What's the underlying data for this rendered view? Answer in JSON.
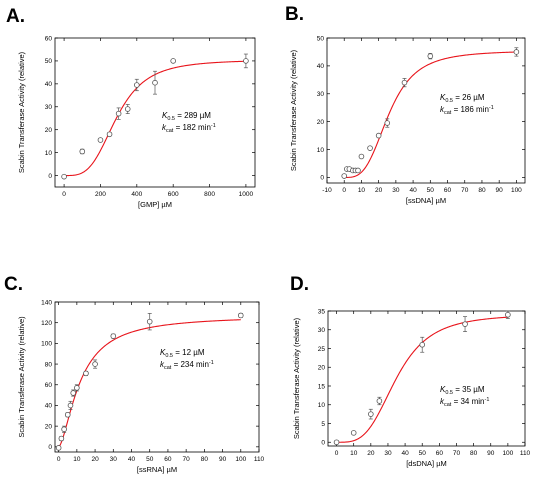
{
  "colors": {
    "fit": "#e8141b",
    "marker": "#555555",
    "axis": "#000000"
  },
  "chart_data": [
    {
      "type": "scatter",
      "panel": "A.",
      "xlabel": "[GMP] µM",
      "ylabel": "Scabin Transferase Activity (relative)",
      "xlim": [
        -50,
        1050
      ],
      "ylim": [
        -5,
        60
      ],
      "xticks": [
        0,
        200,
        400,
        600,
        800,
        1000
      ],
      "yticks": [
        0,
        10,
        20,
        30,
        40,
        50,
        60
      ],
      "points": [
        {
          "x": 0,
          "y": -0.5,
          "err": 0.5
        },
        {
          "x": 100,
          "y": 10.5,
          "err": 1
        },
        {
          "x": 200,
          "y": 15.5,
          "err": 0.7
        },
        {
          "x": 250,
          "y": 18,
          "err": 0.7
        },
        {
          "x": 300,
          "y": 27,
          "err": 2.5
        },
        {
          "x": 350,
          "y": 29,
          "err": 2
        },
        {
          "x": 400,
          "y": 39.5,
          "err": 2.5
        },
        {
          "x": 500,
          "y": 40.5,
          "err": 5
        },
        {
          "x": 600,
          "y": 50,
          "err": 0.7
        },
        {
          "x": 1000,
          "y": 50,
          "err": 3
        }
      ],
      "fit": {
        "vmax": 50.5,
        "k": 289,
        "n": 3.5
      },
      "annotation": {
        "k_label": "K",
        "k_sub": "0.5",
        "k_value": " = 289 µM",
        "kcat_label": "k",
        "kcat_sub": "cat",
        "kcat_value": " = 182 min",
        "kcat_sup": "-1"
      }
    },
    {
      "type": "scatter",
      "panel": "B.",
      "xlabel": "[ssDNA] µM",
      "ylabel": "Scabin Transferase Activity (relative)",
      "xlim": [
        -10,
        105
      ],
      "ylim": [
        -2,
        50
      ],
      "xticks": [
        -10,
        0,
        10,
        20,
        30,
        40,
        50,
        60,
        70,
        80,
        90,
        100
      ],
      "yticks": [
        0,
        10,
        20,
        30,
        40,
        50
      ],
      "points": [
        {
          "x": 0,
          "y": 0.5,
          "err": 0.5
        },
        {
          "x": 1.5,
          "y": 3,
          "err": 0.5
        },
        {
          "x": 3,
          "y": 3,
          "err": 0.5
        },
        {
          "x": 5,
          "y": 2.5,
          "err": 0.5
        },
        {
          "x": 6.5,
          "y": 2.5,
          "err": 0.5
        },
        {
          "x": 8,
          "y": 2.5,
          "err": 0.5
        },
        {
          "x": 10,
          "y": 7.5,
          "err": 0.5
        },
        {
          "x": 15,
          "y": 10.5,
          "err": 0.5
        },
        {
          "x": 20,
          "y": 15,
          "err": 0.5
        },
        {
          "x": 25,
          "y": 19.5,
          "err": 1.5
        },
        {
          "x": 35,
          "y": 34,
          "err": 1.5
        },
        {
          "x": 50,
          "y": 43.5,
          "err": 1
        },
        {
          "x": 100,
          "y": 45,
          "err": 1.5
        }
      ],
      "fit": {
        "vmax": 45.5,
        "k": 26,
        "n": 3.3
      },
      "annotation": {
        "k_label": "K",
        "k_sub": "0.5",
        "k_value": " = 26 µM",
        "kcat_label": "k",
        "kcat_sub": "cat",
        "kcat_value": " = 186 min",
        "kcat_sup": "-1"
      }
    },
    {
      "type": "scatter",
      "panel": "C.",
      "xlabel": "[ssRNA] µM",
      "ylabel": "Scabin Transferase Activity (relative)",
      "xlim": [
        -2,
        110
      ],
      "ylim": [
        -5,
        140
      ],
      "xticks": [
        0,
        10,
        20,
        30,
        40,
        50,
        60,
        70,
        80,
        90,
        100,
        110
      ],
      "yticks": [
        0,
        20,
        40,
        60,
        80,
        100,
        120,
        140
      ],
      "points": [
        {
          "x": 0,
          "y": -1,
          "err": 1
        },
        {
          "x": 1.5,
          "y": 8,
          "err": 2
        },
        {
          "x": 3,
          "y": 17,
          "err": 3
        },
        {
          "x": 5,
          "y": 31,
          "err": 2
        },
        {
          "x": 6.5,
          "y": 40,
          "err": 4
        },
        {
          "x": 8,
          "y": 52,
          "err": 3
        },
        {
          "x": 10,
          "y": 57,
          "err": 3
        },
        {
          "x": 15,
          "y": 71,
          "err": 2
        },
        {
          "x": 20,
          "y": 80,
          "err": 4
        },
        {
          "x": 30,
          "y": 107,
          "err": 2
        },
        {
          "x": 50,
          "y": 121,
          "err": 8
        },
        {
          "x": 100,
          "y": 127,
          "err": 2
        }
      ],
      "fit": {
        "vmax": 127,
        "k": 12,
        "n": 1.6
      },
      "annotation": {
        "k_label": "K",
        "k_sub": "0.5",
        "k_value": " = 12 µM",
        "kcat_label": "k",
        "kcat_sub": "cat",
        "kcat_value": " = 234 min",
        "kcat_sup": "-1"
      }
    },
    {
      "type": "scatter",
      "panel": "D.",
      "xlabel": "[dsDNA] µM",
      "ylabel": "Scabin Transferase Activity (relative)",
      "xlim": [
        -5,
        110
      ],
      "ylim": [
        -1,
        35
      ],
      "xticks": [
        0,
        10,
        20,
        30,
        40,
        50,
        60,
        70,
        80,
        90,
        100,
        110
      ],
      "yticks": [
        0,
        5,
        10,
        15,
        20,
        25,
        30,
        35
      ],
      "points": [
        {
          "x": 0,
          "y": 0,
          "err": 0.3
        },
        {
          "x": 10,
          "y": 2.5,
          "err": 0.3
        },
        {
          "x": 20,
          "y": 7.5,
          "err": 1.3
        },
        {
          "x": 25,
          "y": 11,
          "err": 1
        },
        {
          "x": 50,
          "y": 26,
          "err": 2
        },
        {
          "x": 75,
          "y": 31.5,
          "err": 2
        },
        {
          "x": 100,
          "y": 34,
          "err": 1
        }
      ],
      "fit": {
        "vmax": 34.2,
        "k": 35,
        "n": 3.5
      },
      "annotation": {
        "k_label": "K",
        "k_sub": "0.5",
        "k_value": " = 35 µM",
        "kcat_label": "k",
        "kcat_sub": "cat",
        "kcat_value": " = 34 min",
        "kcat_sup": "-1"
      }
    }
  ]
}
